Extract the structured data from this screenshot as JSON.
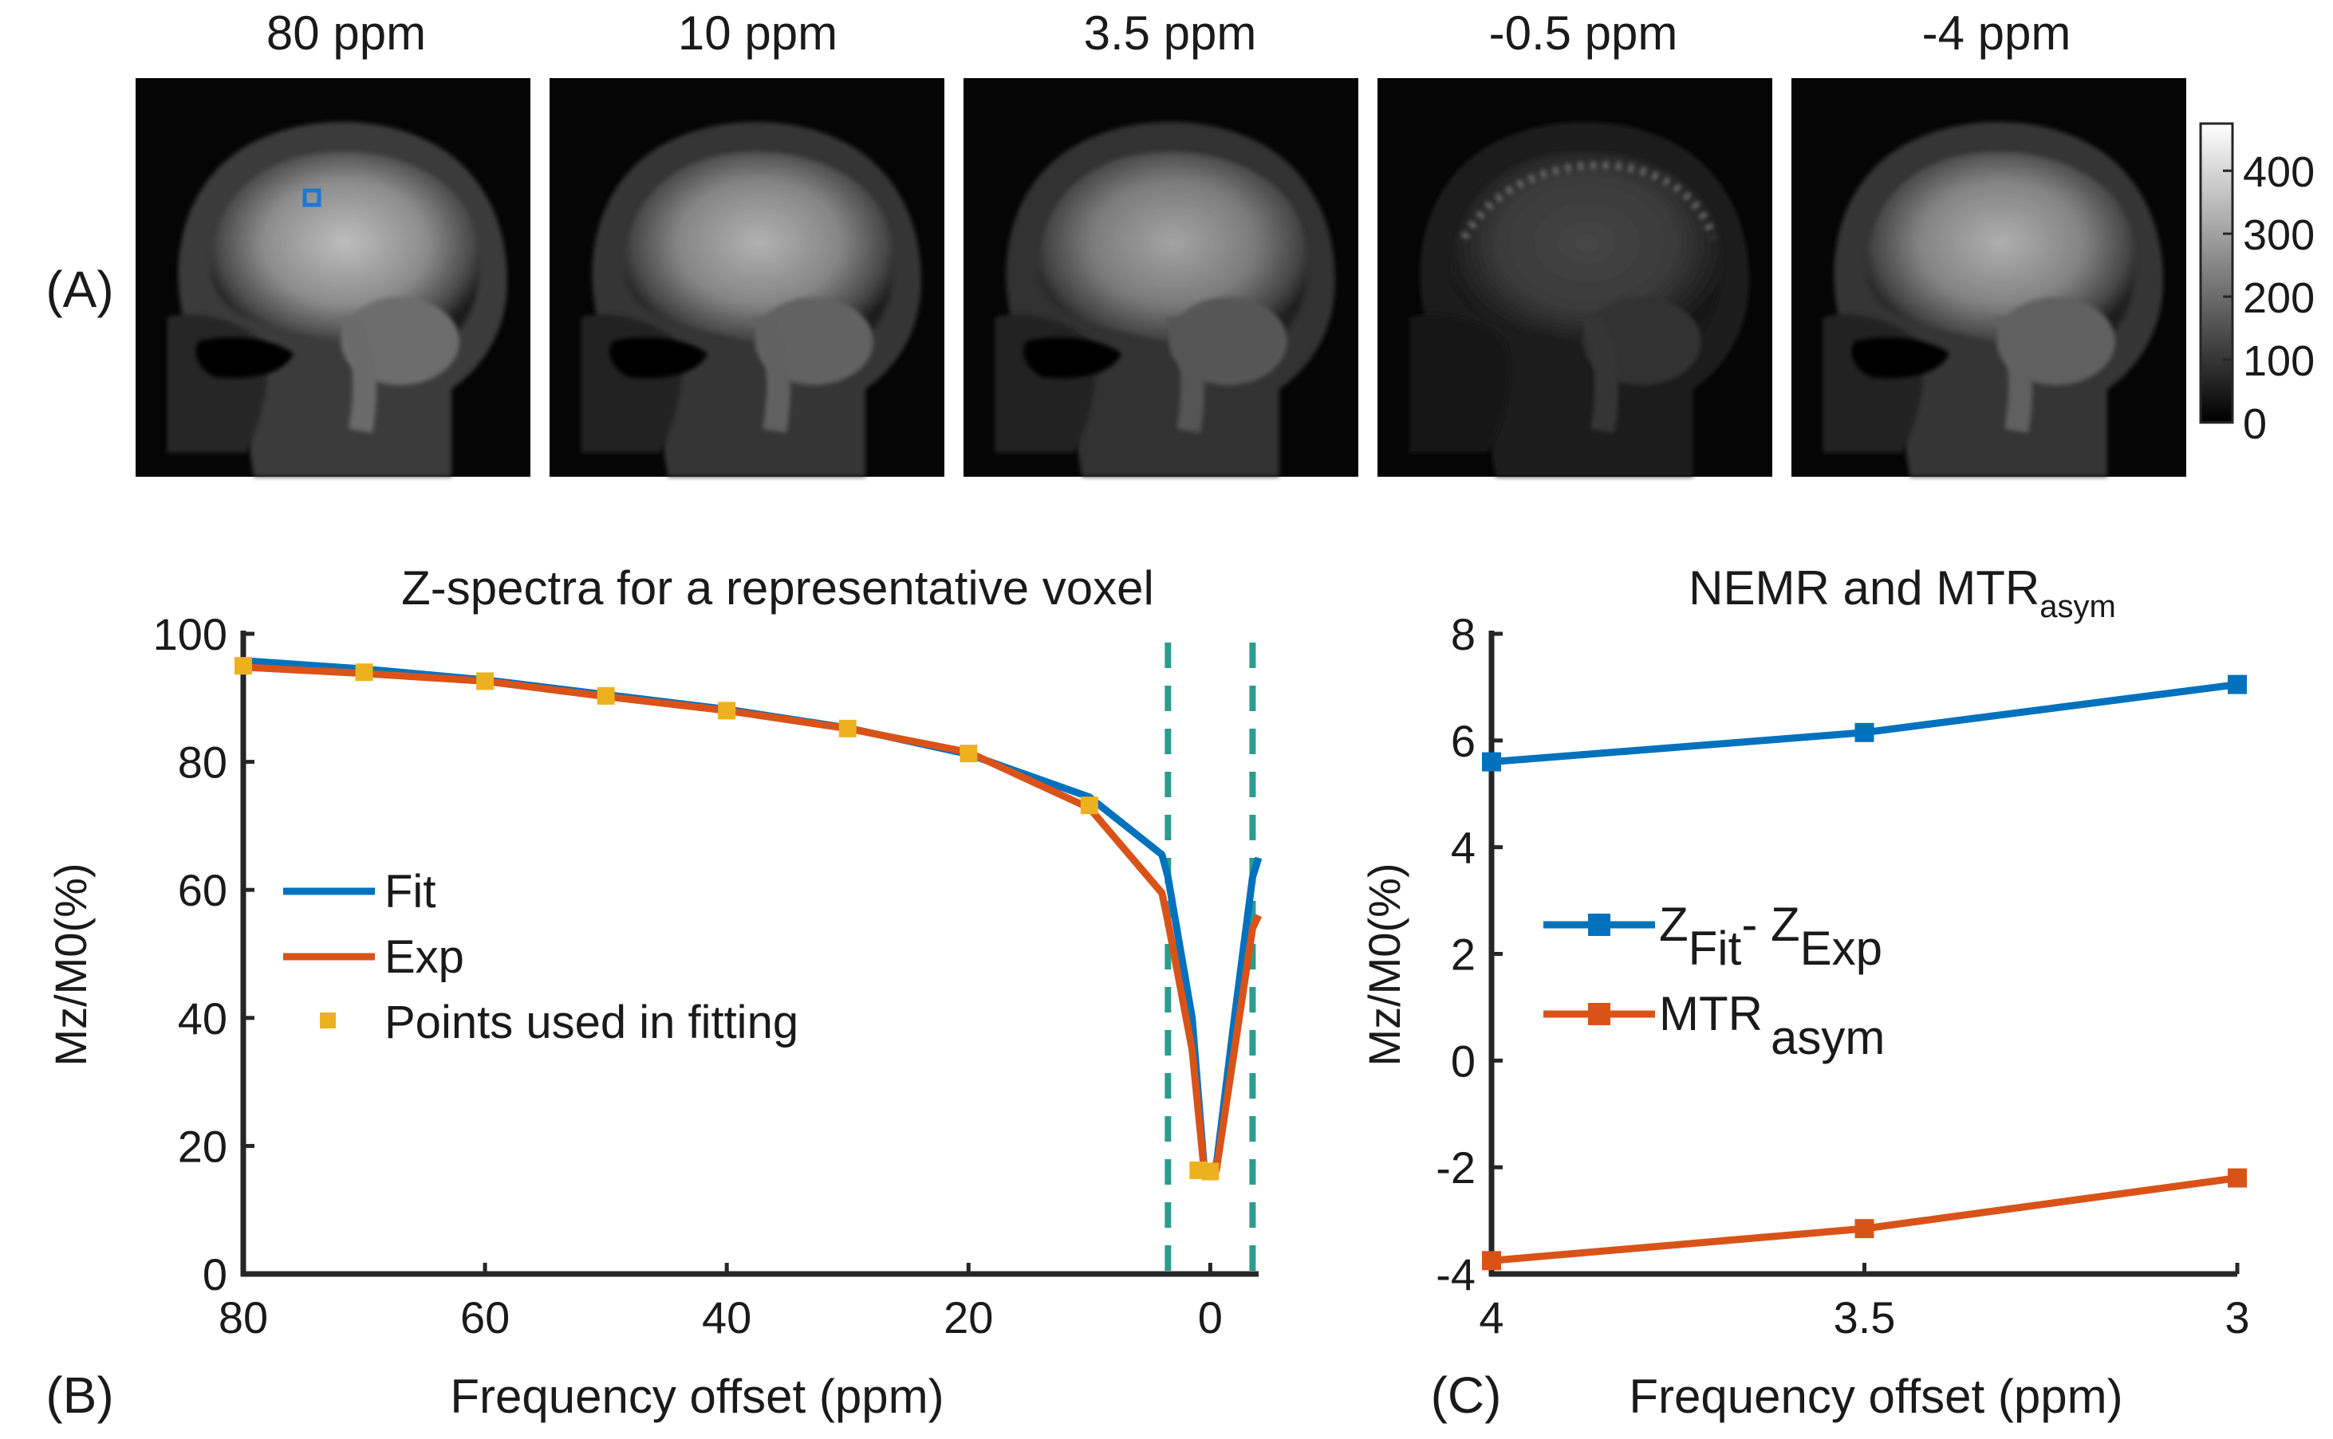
{
  "panel_labels": {
    "a": "(A)",
    "b": "(B)",
    "c": "(C)"
  },
  "images": {
    "offset_labels": [
      "80 ppm",
      "10 ppm",
      "3.5 ppm",
      "-0.5 ppm",
      "-4 ppm"
    ],
    "colorbar_ticks": [
      "400",
      "300",
      "200",
      "100",
      "0"
    ],
    "roi_color": "#1f77d4"
  },
  "colors": {
    "fit": "#0072bd",
    "exp": "#d95319",
    "points": "#edb120",
    "dashed": "#2a9d8f"
  },
  "chart_data": [
    {
      "type": "line",
      "title": "Z-spectra for a representative voxel",
      "xlabel": "Frequency offset (ppm)",
      "ylabel": "Mz/M0(%)",
      "xlim": [
        80,
        -4
      ],
      "ylim": [
        0,
        100
      ],
      "xticks": [
        "80",
        "60",
        "40",
        "20",
        "0"
      ],
      "yticks": [
        "0",
        "20",
        "40",
        "60",
        "80",
        "100"
      ],
      "x": [
        80,
        70,
        60,
        50,
        40,
        30,
        20,
        10,
        4,
        3.5,
        1.5,
        0.5,
        -0.5,
        -2,
        -3.5,
        -4
      ],
      "series": [
        {
          "name": "Fit",
          "values": [
            95.8,
            94.5,
            92.8,
            90.5,
            88.2,
            85.3,
            81.2,
            74.5,
            65.5,
            62.0,
            40.0,
            16.5,
            17.0,
            40.0,
            62.0,
            65.0
          ]
        },
        {
          "name": "Exp",
          "values": [
            94.8,
            93.8,
            92.6,
            90.2,
            88.0,
            85.2,
            81.5,
            72.8,
            59.5,
            55.0,
            35.0,
            16.0,
            16.2,
            35.0,
            54.0,
            56.0
          ]
        }
      ],
      "fitting_points": {
        "name": "Points used in fitting",
        "x": [
          80,
          70,
          60,
          50,
          40,
          30,
          20,
          10,
          1,
          0
        ],
        "y": [
          95.0,
          94.0,
          92.6,
          90.3,
          88.0,
          85.2,
          81.3,
          73.2,
          16.2,
          16.0
        ]
      },
      "vlines": [
        3.5,
        -3.5
      ],
      "legend": [
        "Fit",
        "Exp",
        "Points used in fitting"
      ],
      "legend_position": "center-left"
    },
    {
      "type": "line",
      "title_main": "NEMR and MTR",
      "title_sub": "asym",
      "xlabel": "Frequency offset (ppm)",
      "ylabel": "Mz/M0(%)",
      "xlim": [
        4,
        3
      ],
      "ylim": [
        -4,
        8
      ],
      "xticks": [
        "4",
        "3.5",
        "3"
      ],
      "yticks": [
        "-4",
        "-2",
        "0",
        "2",
        "4",
        "6",
        "8"
      ],
      "x": [
        4,
        3.5,
        3
      ],
      "series": [
        {
          "name": "Z_Fit - Z_Exp",
          "label_parts": [
            "Z",
            "Fit",
            "- Z",
            "Exp"
          ],
          "values": [
            5.6,
            6.15,
            7.05
          ]
        },
        {
          "name": "MTR_asym",
          "label_parts": [
            "MTR",
            "asym"
          ],
          "values": [
            -3.75,
            -3.15,
            -2.2
          ]
        }
      ],
      "legend_position": "center-left"
    }
  ]
}
